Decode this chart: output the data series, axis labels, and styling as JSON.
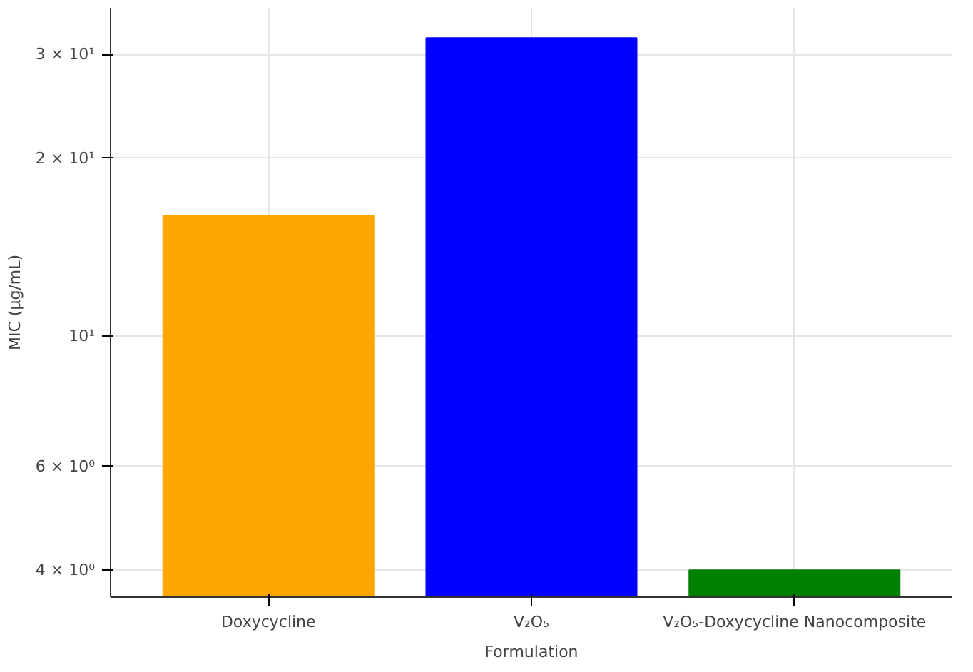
{
  "chart_data": {
    "type": "bar",
    "xlabel": "Formulation",
    "ylabel": "MIC (µg/mL)",
    "categories": [
      "Doxycycline",
      "V₂O₅",
      "V₂O₅-Doxycycline Nanocomposite"
    ],
    "values": [
      16,
      32,
      4
    ],
    "colors": [
      "#ffa500",
      "#0000ff",
      "#008000"
    ],
    "log": true,
    "ylim": [
      3.6,
      36
    ],
    "yticks": [
      {
        "value": 4,
        "label": "4 × 10⁰"
      },
      {
        "value": 6,
        "label": "6 × 10⁰"
      },
      {
        "value": 10,
        "label": "10¹"
      },
      {
        "value": 20,
        "label": "2 × 10¹"
      },
      {
        "value": 30,
        "label": "3 × 10¹"
      }
    ],
    "grid": true
  }
}
